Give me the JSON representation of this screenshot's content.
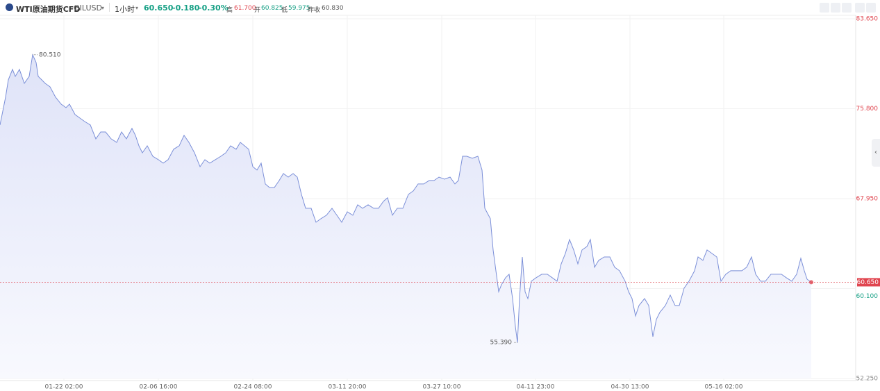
{
  "quote": {
    "name": "WTI原油期货CFD",
    "symbol": "OILUSD",
    "interval": "1小时",
    "price": "60.650",
    "change": "-0.180",
    "change_pct": "-0.30%",
    "high_label": "高",
    "high": "61.700",
    "open_label": "开",
    "open": "60.825",
    "low_label": "低",
    "low": "59.975",
    "prev_label": "昨收",
    "prev": "60.830"
  },
  "chart_data": {
    "type": "area",
    "x": [
      0,
      8,
      12,
      18,
      22,
      28,
      35,
      42,
      47,
      52,
      55,
      60,
      65,
      72,
      80,
      88,
      95,
      100,
      108,
      115,
      122,
      130,
      138,
      145,
      152,
      160,
      168,
      175,
      182,
      190,
      195,
      200,
      205,
      212,
      220,
      228,
      235,
      242,
      250,
      258,
      265,
      272,
      280,
      288,
      295,
      302,
      310,
      318,
      325,
      332,
      340,
      346,
      352,
      358,
      364,
      370,
      376,
      382,
      388,
      395,
      402,
      408,
      415,
      422,
      428,
      434,
      440,
      448,
      455,
      462,
      470,
      478,
      485,
      492,
      500,
      508,
      515,
      522,
      530,
      538,
      545,
      552,
      558,
      565,
      572,
      580,
      588,
      595,
      602,
      610,
      618,
      625,
      632,
      640,
      648,
      655,
      660,
      666,
      672,
      680,
      688,
      694,
      698,
      706,
      710,
      714,
      718,
      722,
      728,
      733,
      738,
      742,
      745,
      748,
      752,
      756,
      760,
      765,
      772,
      780,
      788,
      795,
      802,
      808,
      814,
      820,
      826,
      832,
      838,
      845,
      850,
      856,
      862,
      870,
      878,
      885,
      892,
      900,
      905,
      910,
      915,
      920,
      928,
      934,
      940,
      945,
      950,
      958,
      965,
      972,
      978,
      985,
      992,
      1000,
      1005,
      1012,
      1018,
      1025,
      1032,
      1038,
      1045,
      1052,
      1060,
      1068,
      1075,
      1082,
      1088,
      1095,
      1102,
      1110,
      1118,
      1125,
      1132,
      1140,
      1147,
      1153,
      1158,
      1162,
      1168
    ],
    "series": [
      {
        "name": "OILUSD",
        "color": "#7b8fd8",
        "values": [
          74.38,
          76.8,
          78.32,
          79.23,
          78.62,
          79.23,
          78.01,
          78.62,
          80.51,
          79.83,
          78.62,
          78.32,
          78.01,
          77.71,
          76.8,
          76.2,
          75.89,
          76.2,
          75.29,
          74.98,
          74.68,
          74.38,
          73.17,
          73.77,
          73.77,
          73.17,
          72.86,
          73.77,
          73.17,
          74.08,
          73.47,
          72.56,
          71.95,
          72.56,
          71.65,
          71.35,
          71.05,
          71.35,
          72.26,
          72.56,
          73.47,
          72.86,
          71.95,
          70.74,
          71.35,
          71.05,
          71.35,
          71.65,
          71.95,
          72.56,
          72.26,
          72.86,
          72.56,
          72.26,
          70.74,
          70.44,
          71.05,
          69.23,
          68.92,
          68.92,
          69.53,
          70.14,
          69.83,
          70.14,
          69.83,
          68.32,
          67.11,
          67.11,
          65.89,
          66.2,
          66.5,
          67.11,
          66.5,
          65.89,
          66.8,
          66.5,
          67.41,
          67.11,
          67.41,
          67.11,
          67.11,
          67.71,
          68.02,
          66.5,
          67.11,
          67.11,
          68.32,
          68.62,
          69.23,
          69.23,
          69.53,
          69.53,
          69.83,
          69.65,
          69.83,
          69.23,
          69.53,
          71.65,
          71.65,
          71.47,
          71.65,
          70.44,
          67.11,
          66.2,
          63.47,
          61.65,
          59.83,
          60.44,
          61.05,
          61.35,
          59.23,
          56.8,
          55.39,
          59.23,
          62.86,
          59.83,
          59.23,
          60.74,
          61.05,
          61.35,
          61.35,
          61.05,
          60.74,
          62.26,
          63.17,
          64.38,
          63.47,
          62.26,
          63.47,
          63.77,
          64.38,
          61.96,
          62.56,
          62.86,
          62.86,
          61.96,
          61.65,
          60.74,
          59.83,
          59.23,
          57.71,
          58.62,
          59.23,
          58.62,
          55.9,
          57.41,
          58.02,
          58.62,
          59.53,
          58.62,
          58.62,
          60.14,
          60.74,
          61.65,
          62.86,
          62.56,
          63.47,
          63.17,
          62.86,
          60.74,
          61.35,
          61.65,
          61.65,
          61.65,
          61.96,
          62.86,
          61.35,
          60.74,
          60.74,
          61.35,
          61.35,
          61.35,
          61.05,
          60.74,
          61.35,
          62.74,
          61.65,
          60.92,
          60.65
        ]
      }
    ],
    "xlim": [
      0,
      1232
    ],
    "ylim": [
      52.25,
      83.65
    ],
    "xticks": [
      {
        "value": 92,
        "label": "01-22 02:00"
      },
      {
        "value": 228,
        "label": "02-06 16:00"
      },
      {
        "value": 364,
        "label": "02-24 08:00"
      },
      {
        "value": 500,
        "label": "03-11 20:00"
      },
      {
        "value": 636,
        "label": "03-27 10:00"
      },
      {
        "value": 771,
        "label": "04-11 23:00"
      },
      {
        "value": 907,
        "label": "04-30 13:00"
      },
      {
        "value": 1042,
        "label": "05-16 02:00"
      }
    ],
    "yticks": [
      {
        "value": 52.25,
        "label": "52.250"
      },
      {
        "value": 60.1,
        "label": "60.100"
      },
      {
        "value": 67.95,
        "label": "67.950"
      },
      {
        "value": 75.8,
        "label": "75.800"
      },
      {
        "value": 83.65,
        "label": "83.650"
      }
    ],
    "grid": true,
    "last_price": {
      "value": 60.65,
      "label": "60.650"
    },
    "annotations": [
      {
        "x": 47,
        "value": 80.51,
        "label": "80.510"
      },
      {
        "x": 745,
        "value": 55.39,
        "label": "55.390"
      }
    ]
  }
}
